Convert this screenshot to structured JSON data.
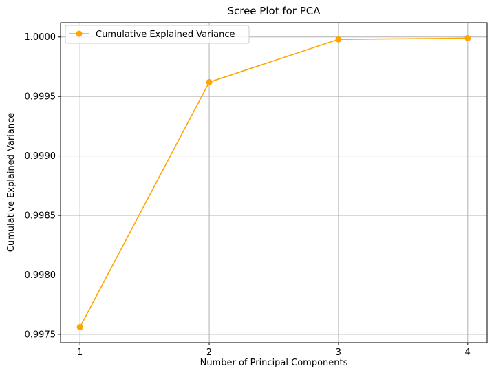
{
  "chart_data": {
    "type": "line",
    "title": "Scree Plot for PCA",
    "xlabel": "Number of Principal Components",
    "ylabel": "Cumulative Explained Variance",
    "x": [
      1,
      2,
      3,
      4
    ],
    "xticks": [
      1,
      2,
      3,
      4
    ],
    "xtick_labels": [
      "1",
      "2",
      "3",
      "4"
    ],
    "xlim": [
      0.85,
      4.15
    ],
    "yticks": [
      0.9975,
      0.998,
      0.9985,
      0.999,
      0.9995,
      1.0
    ],
    "ytick_labels": [
      "0.9975",
      "0.9980",
      "0.9985",
      "0.9990",
      "0.9995",
      "1.0000"
    ],
    "ylim": [
      0.99743,
      1.00012
    ],
    "grid": true,
    "legend_position": "upper-left",
    "series": [
      {
        "name": "Cumulative Explained Variance",
        "color": "#ffa500",
        "marker": "circle",
        "values": [
          0.99756,
          0.99962,
          0.99998,
          0.99999
        ]
      }
    ]
  }
}
